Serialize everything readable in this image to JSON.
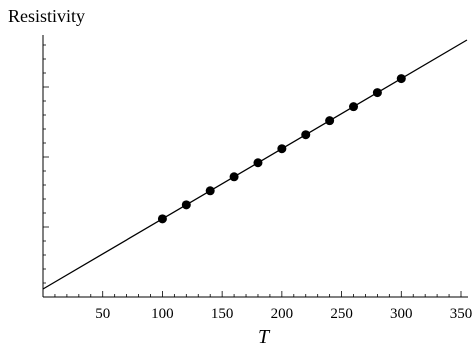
{
  "chart_data": {
    "type": "scatter",
    "title": "",
    "xlabel": "T",
    "ylabel": "Resistivity",
    "xlim": [
      0,
      350
    ],
    "x_ticks": [
      50,
      100,
      150,
      200,
      250,
      300,
      350
    ],
    "y_tick_labels_shown": false,
    "series": [
      {
        "kind": "points",
        "x": [
          100,
          120,
          140,
          160,
          180,
          200,
          220,
          240,
          260,
          280,
          300
        ],
        "y": [
          100,
          120,
          140,
          160,
          180,
          200,
          220,
          240,
          260,
          280,
          300
        ]
      },
      {
        "kind": "fit-line",
        "x": [
          0,
          355
        ],
        "y": [
          0,
          355
        ]
      }
    ]
  }
}
